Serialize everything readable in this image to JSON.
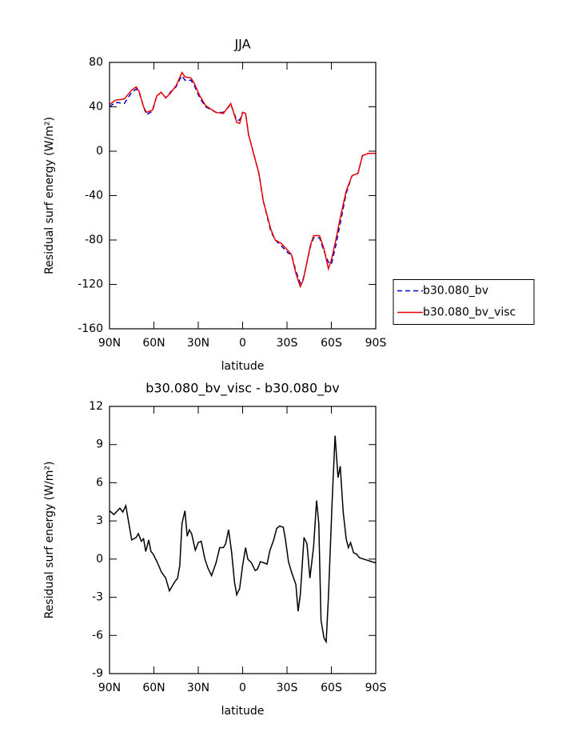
{
  "chart_data": [
    {
      "type": "line",
      "title": "JJA",
      "xlabel": "latitude",
      "ylabel": "Residual surf energy (W/m²)",
      "x": [
        90,
        86,
        80,
        75,
        72,
        70,
        67,
        65,
        61,
        58,
        55,
        52,
        49,
        45,
        42,
        41,
        39,
        35,
        33,
        29,
        25,
        18,
        13,
        8,
        4,
        2,
        0,
        -2,
        -4,
        -8,
        -11,
        -14,
        -19,
        -22,
        -26,
        -31,
        -33,
        -36,
        -39,
        -41,
        -46,
        -48,
        -52,
        -55,
        -58,
        -60,
        -63,
        -66,
        -70,
        -74,
        -78,
        -81,
        -85,
        -90
      ],
      "series": [
        {
          "name": "b30.080_bv",
          "color": "#0000cc",
          "style": "dashed",
          "values": [
            40,
            44,
            43,
            53,
            56,
            53,
            40,
            33,
            36,
            50,
            53,
            48,
            53,
            58,
            66,
            68,
            64,
            64,
            60,
            48,
            40,
            35,
            35,
            42,
            28,
            28,
            35,
            34,
            15,
            -5,
            -20,
            -45,
            -72,
            -80,
            -85,
            -92,
            -93,
            -108,
            -119,
            -115,
            -85,
            -78,
            -78,
            -90,
            -100,
            -102,
            -85,
            -65,
            -38,
            -22,
            -20,
            -4,
            -2,
            -2
          ]
        },
        {
          "name": "b30.080_bv_visc",
          "color": "#ee0000",
          "style": "solid",
          "values": [
            42,
            46,
            47,
            55,
            58,
            54,
            40,
            35,
            37,
            50,
            53,
            48,
            52,
            59,
            68,
            71,
            67,
            66,
            62,
            50,
            41,
            35,
            34,
            43,
            26,
            25,
            35,
            34,
            15,
            -5,
            -20,
            -45,
            -70,
            -80,
            -83,
            -90,
            -93,
            -110,
            -122,
            -116,
            -84,
            -76,
            -76,
            -88,
            -106,
            -98,
            -80,
            -60,
            -36,
            -22,
            -20,
            -4,
            -2,
            -2
          ]
        }
      ],
      "xlim": [
        90,
        -90
      ],
      "xticks": [
        {
          "value": 90,
          "label": "90N"
        },
        {
          "value": 60,
          "label": "60N"
        },
        {
          "value": 30,
          "label": "30N"
        },
        0,
        {
          "value": -30,
          "label": "30S"
        },
        {
          "value": -60,
          "label": "60S"
        },
        {
          "value": -90,
          "label": "90S"
        }
      ],
      "ylim": [
        -160,
        80
      ],
      "yticks": [
        -160,
        -120,
        -80,
        -40,
        0,
        40,
        80
      ],
      "legend": "right"
    },
    {
      "type": "line",
      "title": "b30.080_bv_visc - b30.080_bv",
      "xlabel": "latitude",
      "ylabel": "Residual surf energy (W/m²)",
      "x": [
        90,
        87,
        83,
        81,
        79,
        75,
        72,
        70.5,
        68.5,
        67,
        65.5,
        63.5,
        62,
        60.5,
        57.5,
        55,
        52,
        49.5,
        46,
        44,
        42.5,
        41,
        39,
        37.5,
        36,
        34.5,
        32,
        30,
        28,
        25.5,
        23.5,
        21,
        18,
        15.5,
        13,
        11.5,
        9.5,
        7.5,
        5.5,
        4,
        2,
        0,
        -2,
        -3.5,
        -6,
        -8.5,
        -10,
        -12,
        -14.5,
        -16.5,
        -18.5,
        -21,
        -23,
        -25,
        -27.5,
        -29,
        -31,
        -33,
        -36,
        -37.5,
        -39,
        -41.5,
        -43.5,
        -45.5,
        -48,
        -50,
        -51.5,
        -53,
        -55,
        -56.5,
        -58,
        -60.5,
        -62.5,
        -64.5,
        -66,
        -68,
        -70,
        -71.5,
        -73,
        -75,
        -77,
        -79,
        -84.5,
        -90
      ],
      "series": [
        {
          "name": null,
          "color": "#000000",
          "style": "solid",
          "values": [
            3.8,
            3.5,
            4.0,
            3.7,
            4.2,
            1.5,
            1.7,
            2.0,
            1.4,
            1.6,
            0.6,
            1.5,
            0.6,
            0.4,
            -0.3,
            -1.0,
            -1.5,
            -2.5,
            -1.8,
            -1.5,
            -0.5,
            2.8,
            3.8,
            1.8,
            2.3,
            2.0,
            0.7,
            1.3,
            1.4,
            0.0,
            -0.7,
            -1.3,
            -0.3,
            0.9,
            0.9,
            1.2,
            2.3,
            0.6,
            -1.8,
            -2.8,
            -2.3,
            -0.5,
            0.9,
            0.0,
            -0.3,
            -0.9,
            -0.8,
            -0.2,
            -0.3,
            -0.4,
            0.7,
            1.5,
            2.4,
            2.6,
            2.5,
            1.5,
            -0.2,
            -1.0,
            -2.0,
            -4.1,
            -2.8,
            1.7,
            1.2,
            -1.5,
            1.0,
            4.6,
            2.8,
            -4.8,
            -6.2,
            -6.5,
            -3.0,
            4.5,
            9.7,
            6.4,
            7.3,
            3.7,
            1.6,
            0.9,
            1.3,
            0.5,
            0.4,
            0.1,
            -0.1,
            -0.3
          ]
        }
      ],
      "xlim": [
        90,
        -90
      ],
      "xticks": [
        {
          "value": 90,
          "label": "90N"
        },
        {
          "value": 60,
          "label": "60N"
        },
        {
          "value": 30,
          "label": "30N"
        },
        0,
        {
          "value": -30,
          "label": "30S"
        },
        {
          "value": -60,
          "label": "60S"
        },
        {
          "value": -90,
          "label": "90S"
        }
      ],
      "ylim": [
        -9,
        12
      ],
      "yticks": [
        -9,
        -6,
        -3,
        0,
        3,
        6,
        9,
        12
      ]
    }
  ]
}
